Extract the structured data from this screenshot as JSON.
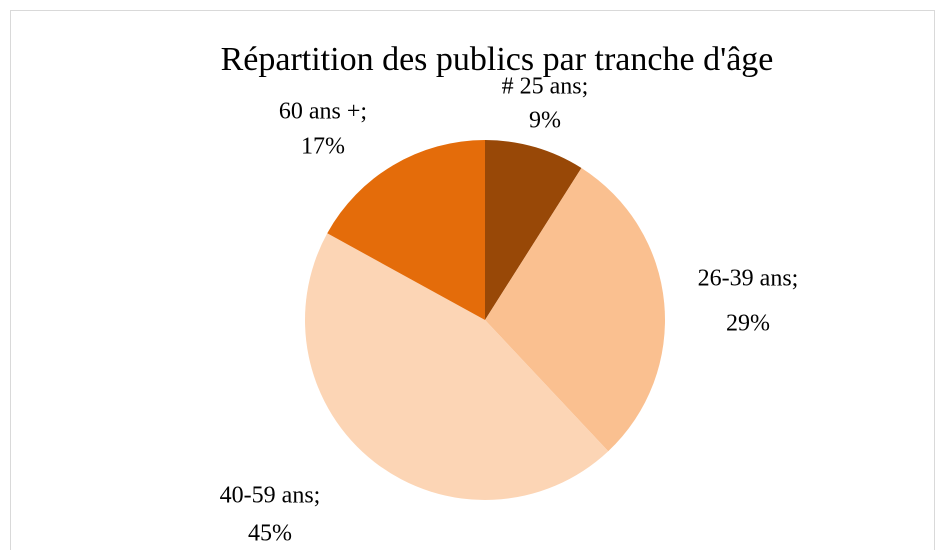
{
  "chart_data": {
    "type": "pie",
    "title": "Répartition des publics par tranche d'âge",
    "categories": [
      "# 25 ans;",
      "26-39 ans;",
      "40-59 ans;",
      "60 ans +;"
    ],
    "values": [
      9,
      29,
      45,
      17
    ],
    "value_labels": [
      "9%",
      "29%",
      "45%",
      "17%"
    ],
    "colors": [
      "#984807",
      "#fac090",
      "#fcd5b5",
      "#e46c0a"
    ]
  }
}
